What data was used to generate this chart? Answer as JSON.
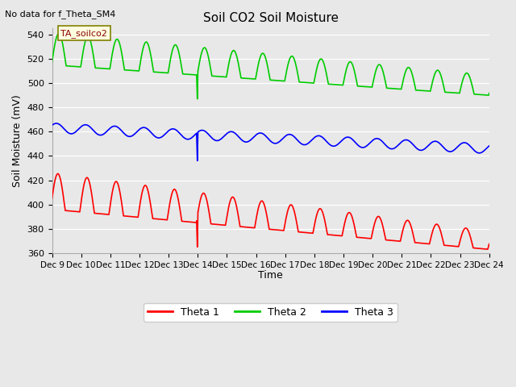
{
  "title": "Soil CO2 Soil Moisture",
  "top_left_text": "No data for f_Theta_SM4",
  "ylabel": "Soil Moisture (mV)",
  "xlabel": "Time",
  "annotation_label": "TA_soilco2",
  "xlim": [
    0,
    15
  ],
  "ylim": [
    360,
    545
  ],
  "yticks": [
    360,
    380,
    400,
    420,
    440,
    460,
    480,
    500,
    520,
    540
  ],
  "xtick_labels": [
    "Dec 9",
    "Dec 10",
    "Dec 11",
    "Dec 12",
    "Dec 13",
    "Dec 14",
    "Dec 15",
    "Dec 16",
    "Dec 17",
    "Dec 18",
    "Dec 19",
    "Dec 20",
    "Dec 21",
    "Dec 22",
    "Dec 23",
    "Dec 24"
  ],
  "bg_color": "#e8e8e8",
  "grid_color": "#ffffff",
  "theta1_color": "#ff0000",
  "theta2_color": "#00cc00",
  "theta3_color": "#0000ff",
  "line_width": 1.2,
  "legend_labels": [
    "Theta 1",
    "Theta 2",
    "Theta 3"
  ]
}
